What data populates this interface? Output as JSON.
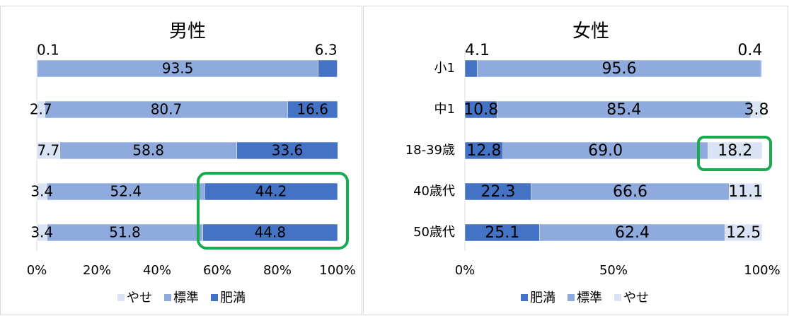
{
  "chart_data": [
    {
      "type": "stacked-bar-horizontal",
      "title": "男性",
      "categories": [
        null,
        null,
        null,
        null,
        null
      ],
      "series": [
        {
          "name": "やせ",
          "color": "#dae3f3",
          "values": [
            0.1,
            2.7,
            7.7,
            3.4,
            3.4
          ]
        },
        {
          "name": "標準",
          "color": "#8faadc",
          "values": [
            93.5,
            80.7,
            58.8,
            52.4,
            51.8
          ]
        },
        {
          "name": "肥満",
          "color": "#4472c4",
          "values": [
            6.3,
            16.6,
            33.6,
            44.2,
            44.8
          ]
        }
      ],
      "xlim": [
        0,
        100
      ],
      "xticks": [
        {
          "value": 0,
          "label": "0%"
        },
        {
          "value": 20,
          "label": "20%"
        },
        {
          "value": 40,
          "label": "40%"
        },
        {
          "value": 60,
          "label": "60%"
        },
        {
          "value": 80,
          "label": "80%"
        },
        {
          "value": 100,
          "label": "100%"
        }
      ],
      "legend": "bottom"
    },
    {
      "type": "stacked-bar-horizontal",
      "title": "女性",
      "categories": [
        "小1",
        "中1",
        "18-39歳",
        "40歳代",
        "50歳代"
      ],
      "series": [
        {
          "name": "肥満",
          "color": "#4472c4",
          "values": [
            4.1,
            10.8,
            12.8,
            22.3,
            25.1
          ]
        },
        {
          "name": "標準",
          "color": "#8faadc",
          "values": [
            95.6,
            85.4,
            69.0,
            66.6,
            62.4
          ],
          "value_labels": [
            "95.6",
            "85.4",
            "69.0",
            "66.6",
            "62.4"
          ]
        },
        {
          "name": "やせ",
          "color": "#dae3f3",
          "values": [
            0.4,
            3.8,
            18.2,
            11.1,
            12.5
          ]
        }
      ],
      "xlim": [
        0,
        100
      ],
      "xticks": [
        {
          "value": 0,
          "label": "0%"
        },
        {
          "value": 50,
          "label": "50%"
        },
        {
          "value": 100,
          "label": "100%"
        }
      ],
      "legend": "bottom"
    }
  ]
}
